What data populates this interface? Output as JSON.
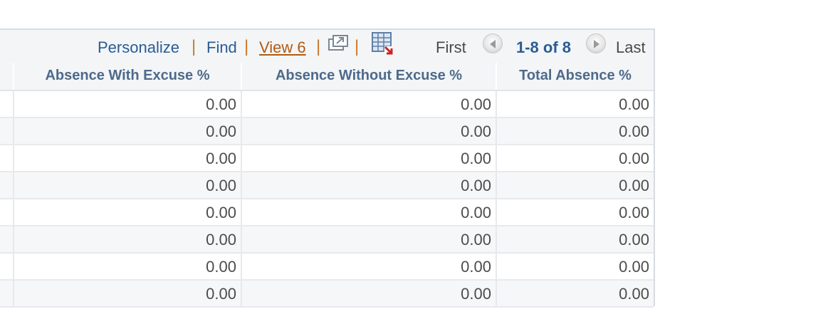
{
  "toolbar": {
    "personalize": "Personalize",
    "find": "Find",
    "view": "View 6",
    "separator": "|",
    "new_window_icon": "new-window-icon",
    "download_icon": "download-to-excel-icon",
    "first": "First",
    "counter": "1-8 of 8",
    "last": "Last"
  },
  "columns": [
    "Absence With Excuse %",
    "Absence Without Excuse %",
    "Total Absence %"
  ],
  "rows": [
    [
      "0.00",
      "0.00",
      "0.00"
    ],
    [
      "0.00",
      "0.00",
      "0.00"
    ],
    [
      "0.00",
      "0.00",
      "0.00"
    ],
    [
      "0.00",
      "0.00",
      "0.00"
    ],
    [
      "0.00",
      "0.00",
      "0.00"
    ],
    [
      "0.00",
      "0.00",
      "0.00"
    ],
    [
      "0.00",
      "0.00",
      "0.00"
    ],
    [
      "0.00",
      "0.00",
      "0.00"
    ]
  ],
  "colors": {
    "link": "#2a5c93",
    "visited_link": "#b25a12",
    "separator": "#c77a2a",
    "header_text": "#4e6a8a"
  }
}
